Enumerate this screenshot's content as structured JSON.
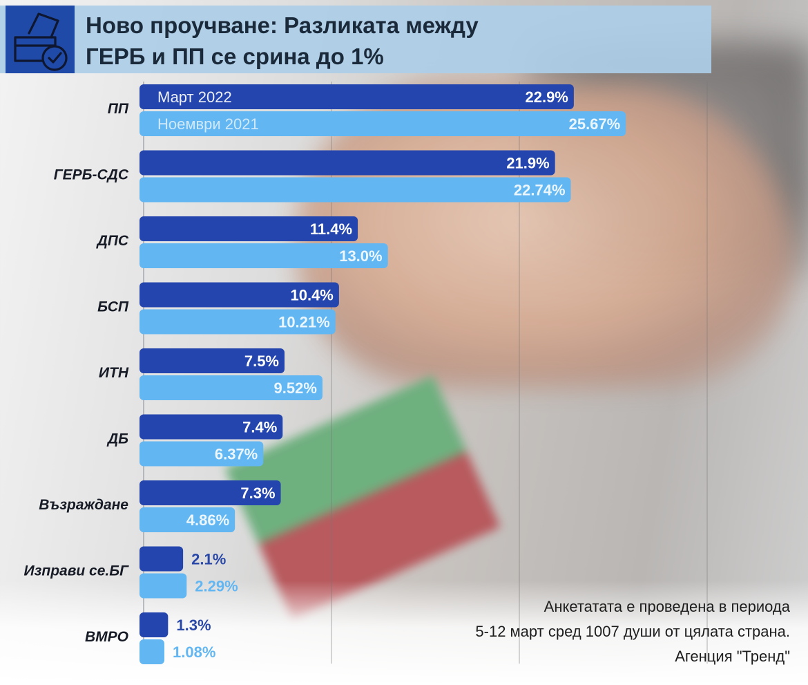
{
  "title_line1": "Ново проучване: Разликата между",
  "title_line2": "ГЕРБ и ПП се срина до 1%",
  "note": {
    "line1": "Анкетатата е проведена в периода",
    "line2": "5-12 март сред 1007 души от цялата страна.",
    "line3": "Агенция \"Тренд\""
  },
  "colors": {
    "march_2022": "#2345ad",
    "november_2021": "#62b6f2",
    "title_band": "#acceE8",
    "logo": "#1f4aa7"
  },
  "icons": {
    "logo": "ballot-box-check-icon"
  },
  "chart_data": {
    "type": "bar",
    "orientation": "horizontal",
    "title": "Ново проучване: Разликата между ГЕРБ и ПП се срина до 1%",
    "categories": [
      "ПП",
      "ГЕРБ-СДС",
      "ДПС",
      "БСП",
      "ИТН",
      "ДБ",
      "Възраждане",
      "Изправи се.БГ",
      "ВМРО"
    ],
    "series": [
      {
        "name": "Март 2022",
        "values": [
          22.9,
          21.9,
          11.4,
          10.4,
          7.5,
          7.4,
          7.3,
          2.1,
          1.3
        ],
        "labels": [
          "22.9%",
          "21.9%",
          "11.4%",
          "10.4%",
          "7.5%",
          "7.4%",
          "7.3%",
          "2.1%",
          "1.3%"
        ]
      },
      {
        "name": "Ноември 2021",
        "values": [
          25.67,
          22.74,
          13.0,
          10.21,
          9.52,
          6.37,
          4.86,
          2.29,
          1.08
        ],
        "labels": [
          "25.67%",
          "22.74%",
          "13.0%",
          "10.21%",
          "9.52%",
          "6.37%",
          "4.86%",
          "2.29%",
          "1.08%"
        ]
      }
    ],
    "xlim": [
      0,
      30
    ],
    "grid": true,
    "legend": "inside first bars"
  }
}
